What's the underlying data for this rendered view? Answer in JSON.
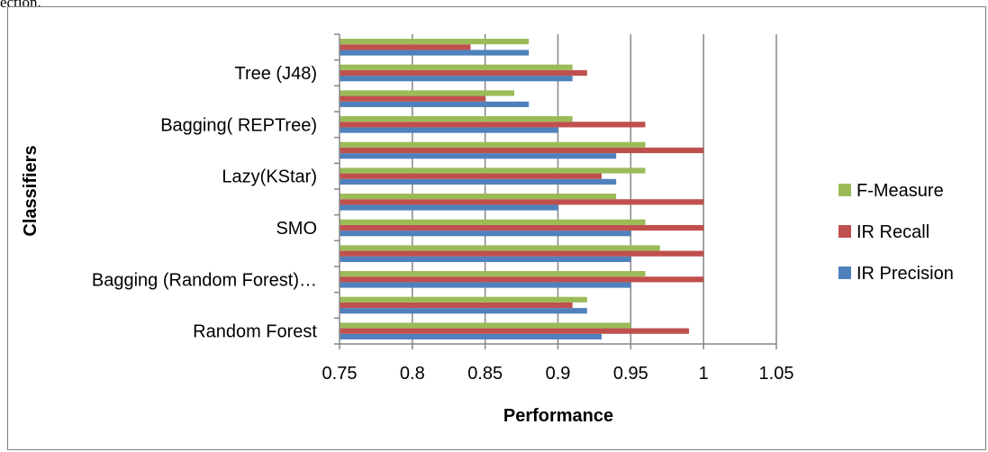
{
  "page": {
    "top_text": "ection."
  },
  "chart_data": {
    "type": "bar",
    "orientation": "horizontal",
    "xlabel": "Performance",
    "ylabel": "Classifiers",
    "xlim": [
      0.75,
      1.05
    ],
    "x_ticks": [
      "0.75",
      "0.8",
      "0.85",
      "0.9",
      "0.95",
      "1",
      "1.05"
    ],
    "x_tick_values": [
      0.75,
      0.8,
      0.85,
      0.9,
      0.95,
      1.0,
      1.05
    ],
    "grid": true,
    "legend_position": "right",
    "colors": {
      "F-Measure": "#9bbb59",
      "IR Recall": "#c0504d",
      "IR Precision": "#4f81bd"
    },
    "legend_order": [
      "F-Measure",
      "IR Recall",
      "IR Precision"
    ],
    "series_order": [
      "IR Precision",
      "IR Recall",
      "F-Measure"
    ],
    "groups": [
      {
        "label": "Random Forest",
        "values": {
          "IR Precision": 0.93,
          "IR Recall": 0.99,
          "F-Measure": 0.95
        }
      },
      {
        "label": "",
        "values": {
          "IR Precision": 0.92,
          "IR Recall": 0.91,
          "F-Measure": 0.92
        }
      },
      {
        "label": "Bagging (Random Forest)…",
        "values": {
          "IR Precision": 0.95,
          "IR Recall": 1.0,
          "F-Measure": 0.96
        }
      },
      {
        "label": "",
        "values": {
          "IR Precision": 0.95,
          "IR Recall": 1.0,
          "F-Measure": 0.97
        }
      },
      {
        "label": "SMO",
        "values": {
          "IR Precision": 0.95,
          "IR Recall": 1.0,
          "F-Measure": 0.96
        }
      },
      {
        "label": "",
        "values": {
          "IR Precision": 0.9,
          "IR Recall": 1.0,
          "F-Measure": 0.94
        }
      },
      {
        "label": "Lazy(KStar)",
        "values": {
          "IR Precision": 0.94,
          "IR Recall": 0.93,
          "F-Measure": 0.96
        }
      },
      {
        "label": "",
        "values": {
          "IR Precision": 0.94,
          "IR Recall": 1.0,
          "F-Measure": 0.96
        }
      },
      {
        "label": "Bagging( REPTree)",
        "values": {
          "IR Precision": 0.9,
          "IR Recall": 0.96,
          "F-Measure": 0.91
        }
      },
      {
        "label": "",
        "values": {
          "IR Precision": 0.88,
          "IR Recall": 0.85,
          "F-Measure": 0.87
        }
      },
      {
        "label": "Tree (J48)",
        "values": {
          "IR Precision": 0.91,
          "IR Recall": 0.92,
          "F-Measure": 0.91
        }
      },
      {
        "label": "",
        "values": {
          "IR Precision": 0.88,
          "IR Recall": 0.84,
          "F-Measure": 0.88
        }
      }
    ]
  }
}
